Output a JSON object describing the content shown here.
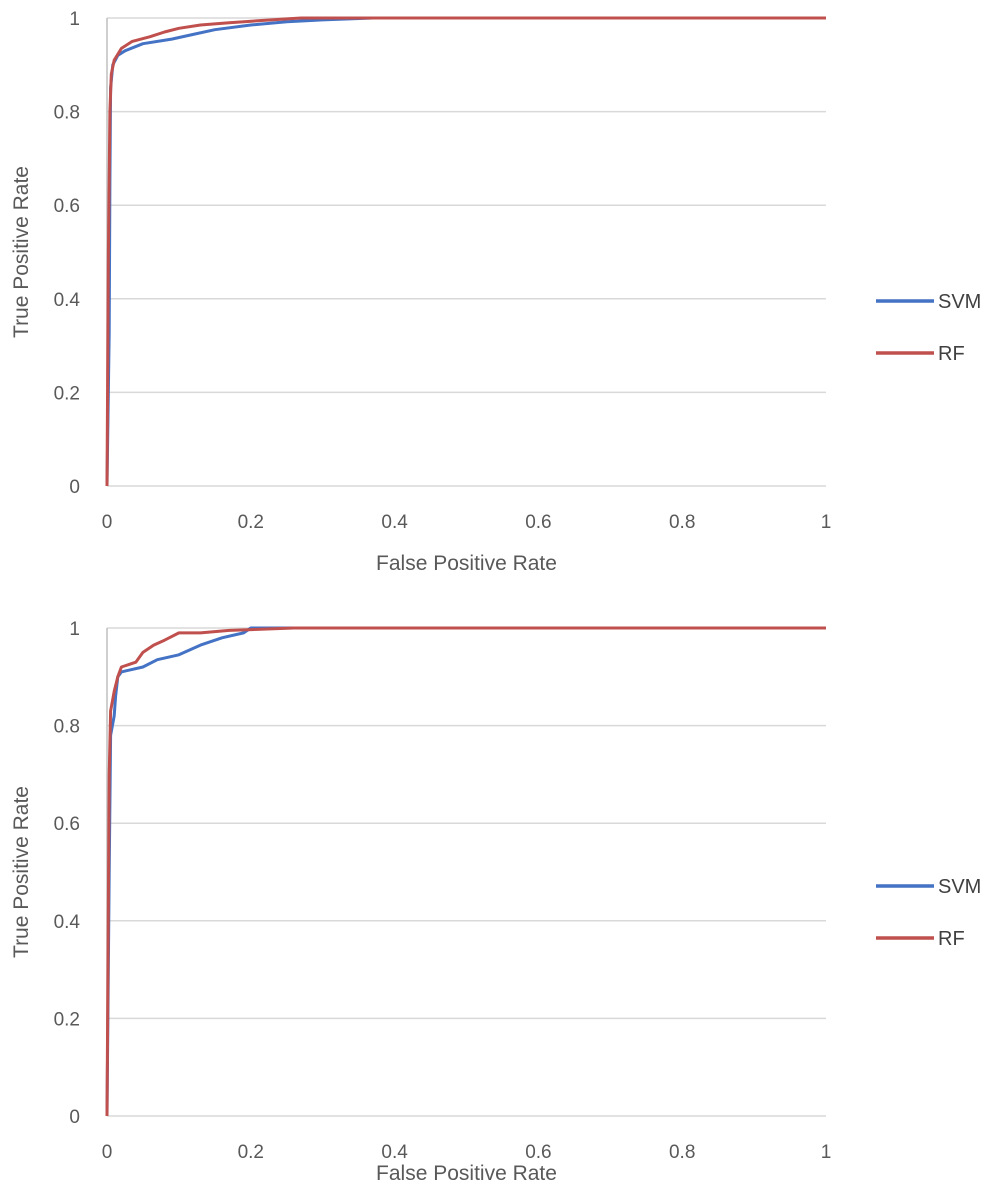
{
  "chart_data": [
    {
      "type": "line",
      "title": "",
      "xlabel": "False Positive Rate",
      "ylabel": "True Positive Rate",
      "xlim": [
        0,
        1
      ],
      "ylim": [
        0,
        1
      ],
      "xticks": [
        "0",
        "0.2",
        "0.4",
        "0.6",
        "0.8",
        "1"
      ],
      "yticks": [
        "0",
        "0.2",
        "0.4",
        "0.6",
        "0.8",
        "1"
      ],
      "grid": "horizontal",
      "legend_position": "right",
      "series": [
        {
          "name": "SVM",
          "color": "#4472C4",
          "points": [
            [
              0,
              0
            ],
            [
              0.003,
              0.33
            ],
            [
              0.004,
              0.65
            ],
            [
              0.005,
              0.85
            ],
            [
              0.008,
              0.9
            ],
            [
              0.015,
              0.92
            ],
            [
              0.025,
              0.93
            ],
            [
              0.05,
              0.945
            ],
            [
              0.09,
              0.955
            ],
            [
              0.12,
              0.965
            ],
            [
              0.15,
              0.975
            ],
            [
              0.2,
              0.985
            ],
            [
              0.25,
              0.992
            ],
            [
              0.3,
              0.996
            ],
            [
              0.37,
              1.0
            ],
            [
              1.0,
              1.0
            ]
          ]
        },
        {
          "name": "RF",
          "color": "#C0504D",
          "points": [
            [
              0,
              0
            ],
            [
              0.002,
              0.5
            ],
            [
              0.004,
              0.8
            ],
            [
              0.006,
              0.88
            ],
            [
              0.01,
              0.91
            ],
            [
              0.02,
              0.935
            ],
            [
              0.035,
              0.95
            ],
            [
              0.06,
              0.96
            ],
            [
              0.08,
              0.97
            ],
            [
              0.1,
              0.978
            ],
            [
              0.13,
              0.985
            ],
            [
              0.17,
              0.99
            ],
            [
              0.22,
              0.995
            ],
            [
              0.27,
              1.0
            ],
            [
              1.0,
              1.0
            ]
          ]
        }
      ]
    },
    {
      "type": "line",
      "title": "",
      "xlabel": "False Positive Rate",
      "ylabel": "True Positive Rate",
      "xlim": [
        0,
        1
      ],
      "ylim": [
        0,
        1
      ],
      "xticks": [
        "0",
        "0.2",
        "0.4",
        "0.6",
        "0.8",
        "1"
      ],
      "yticks": [
        "0",
        "0.2",
        "0.4",
        "0.6",
        "0.8",
        "1"
      ],
      "grid": "horizontal",
      "legend_position": "right",
      "series": [
        {
          "name": "SVM",
          "color": "#4472C4",
          "points": [
            [
              0,
              0
            ],
            [
              0.003,
              0.5
            ],
            [
              0.005,
              0.78
            ],
            [
              0.01,
              0.82
            ],
            [
              0.012,
              0.86
            ],
            [
              0.015,
              0.9
            ],
            [
              0.02,
              0.91
            ],
            [
              0.05,
              0.92
            ],
            [
              0.07,
              0.935
            ],
            [
              0.1,
              0.945
            ],
            [
              0.13,
              0.965
            ],
            [
              0.16,
              0.98
            ],
            [
              0.19,
              0.99
            ],
            [
              0.2,
              1.0
            ],
            [
              0.6,
              1.0
            ],
            [
              1.0,
              1.0
            ]
          ]
        },
        {
          "name": "RF",
          "color": "#C0504D",
          "points": [
            [
              0,
              0
            ],
            [
              0.003,
              0.7
            ],
            [
              0.005,
              0.83
            ],
            [
              0.01,
              0.87
            ],
            [
              0.015,
              0.9
            ],
            [
              0.02,
              0.92
            ],
            [
              0.04,
              0.93
            ],
            [
              0.05,
              0.95
            ],
            [
              0.065,
              0.965
            ],
            [
              0.08,
              0.975
            ],
            [
              0.1,
              0.99
            ],
            [
              0.13,
              0.99
            ],
            [
              0.17,
              0.995
            ],
            [
              0.26,
              1.0
            ],
            [
              1.0,
              1.0
            ]
          ]
        }
      ]
    }
  ]
}
